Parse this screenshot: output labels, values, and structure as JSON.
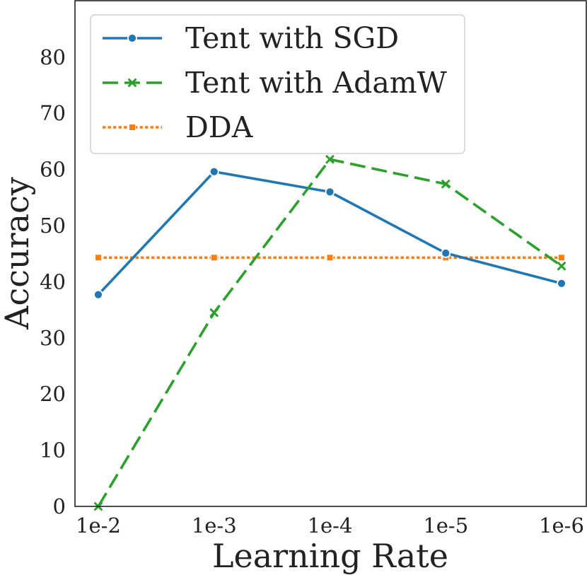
{
  "chart_data": {
    "type": "line",
    "categories": [
      "1e-2",
      "1e-3",
      "1e-4",
      "1e-5",
      "1e-6"
    ],
    "series": [
      {
        "name": "Tent with SGD",
        "values": [
          37.7,
          59.6,
          56.0,
          45.1,
          39.7
        ],
        "color": "#1f77b4",
        "dash": "solid",
        "marker": "circle"
      },
      {
        "name": "Tent with AdamW",
        "values": [
          0.0,
          34.5,
          61.8,
          57.4,
          42.8
        ],
        "color": "#2ca02c",
        "dash": "dashed",
        "marker": "x"
      },
      {
        "name": "DDA",
        "values": [
          44.3,
          44.3,
          44.3,
          44.3,
          44.3
        ],
        "color": "#ff7f0e",
        "dash": "dotted",
        "marker": "square"
      }
    ],
    "title": "",
    "xlabel": "Learning Rate",
    "ylabel": "Accuracy",
    "ylim": [
      0,
      90
    ],
    "yticks": [
      0,
      10,
      20,
      30,
      40,
      50,
      60,
      70,
      80
    ],
    "grid": false,
    "legend_position": "top-left"
  }
}
